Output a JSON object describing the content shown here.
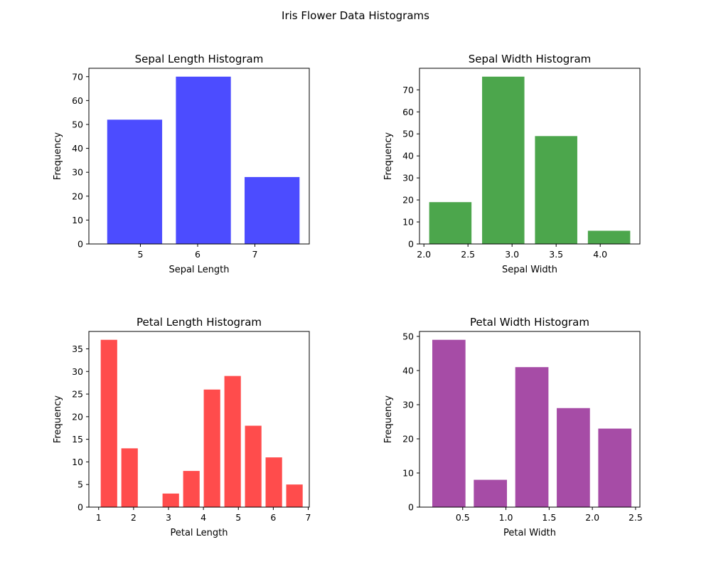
{
  "figure": {
    "title": "Iris Flower Data Histograms"
  },
  "chart_data": [
    {
      "type": "bar",
      "title": "Sepal Length Histogram",
      "xlabel": "Sepal Length",
      "ylabel": "Frequency",
      "color": "#0000ff",
      "bins": [
        [
          4.3,
          5.5
        ],
        [
          5.5,
          6.7
        ],
        [
          6.7,
          7.9
        ]
      ],
      "values": [
        52,
        70,
        28
      ],
      "xlim": [
        4.1,
        7.95
      ],
      "ylim": [
        0,
        73.5
      ],
      "xticks": [
        5,
        6,
        7
      ],
      "xtick_labels": [
        "5",
        "6",
        "7"
      ],
      "yticks": [
        0,
        10,
        20,
        30,
        40,
        50,
        60,
        70
      ],
      "grid": false
    },
    {
      "type": "bar",
      "title": "Sepal Width Histogram",
      "xlabel": "Sepal Width",
      "ylabel": "Frequency",
      "color": "#008000",
      "bins": [
        [
          2.0,
          2.6
        ],
        [
          2.6,
          3.2
        ],
        [
          3.2,
          3.8
        ],
        [
          3.8,
          4.4
        ]
      ],
      "values": [
        19,
        76,
        49,
        6
      ],
      "xlim": [
        1.95,
        4.45
      ],
      "ylim": [
        0,
        79.8
      ],
      "xticks": [
        2.0,
        2.5,
        3.0,
        3.5,
        4.0
      ],
      "xtick_labels": [
        "2.0",
        "2.5",
        "3.0",
        "3.5",
        "4.0"
      ],
      "yticks": [
        0,
        10,
        20,
        30,
        40,
        50,
        60,
        70
      ],
      "grid": false
    },
    {
      "type": "bar",
      "title": "Petal Length Histogram",
      "xlabel": "Petal Length",
      "ylabel": "Frequency",
      "color": "#ff0000",
      "bins": [
        [
          1.0,
          1.59
        ],
        [
          1.59,
          2.18
        ],
        [
          2.18,
          2.77
        ],
        [
          2.77,
          3.36
        ],
        [
          3.36,
          3.95
        ],
        [
          3.95,
          4.54
        ],
        [
          4.54,
          5.13
        ],
        [
          5.13,
          5.72
        ],
        [
          5.72,
          6.31
        ],
        [
          6.31,
          6.9
        ]
      ],
      "values": [
        37,
        13,
        0,
        3,
        8,
        26,
        29,
        18,
        11,
        5
      ],
      "xlim": [
        0.72,
        7.03
      ],
      "ylim": [
        0,
        38.85
      ],
      "xticks": [
        1,
        2,
        3,
        4,
        5,
        6,
        7
      ],
      "xtick_labels": [
        "1",
        "2",
        "3",
        "4",
        "5",
        "6",
        "7"
      ],
      "yticks": [
        0,
        5,
        10,
        15,
        20,
        25,
        30,
        35
      ],
      "grid": false
    },
    {
      "type": "bar",
      "title": "Petal Width Histogram",
      "xlabel": "Petal Width",
      "ylabel": "Frequency",
      "color": "#800080",
      "bins": [
        [
          0.1,
          0.58
        ],
        [
          0.58,
          1.06
        ],
        [
          1.06,
          1.54
        ],
        [
          1.54,
          2.02
        ],
        [
          2.02,
          2.5
        ]
      ],
      "values": [
        49,
        8,
        41,
        29,
        23
      ],
      "xlim": [
        0.0,
        2.55
      ],
      "ylim": [
        0,
        51.45
      ],
      "xticks": [
        0.5,
        1.0,
        1.5,
        2.0,
        2.5
      ],
      "xtick_labels": [
        "0.5",
        "1.0",
        "1.5",
        "2.0",
        "2.5"
      ],
      "yticks": [
        0,
        10,
        20,
        30,
        40,
        50
      ],
      "grid": false
    }
  ]
}
